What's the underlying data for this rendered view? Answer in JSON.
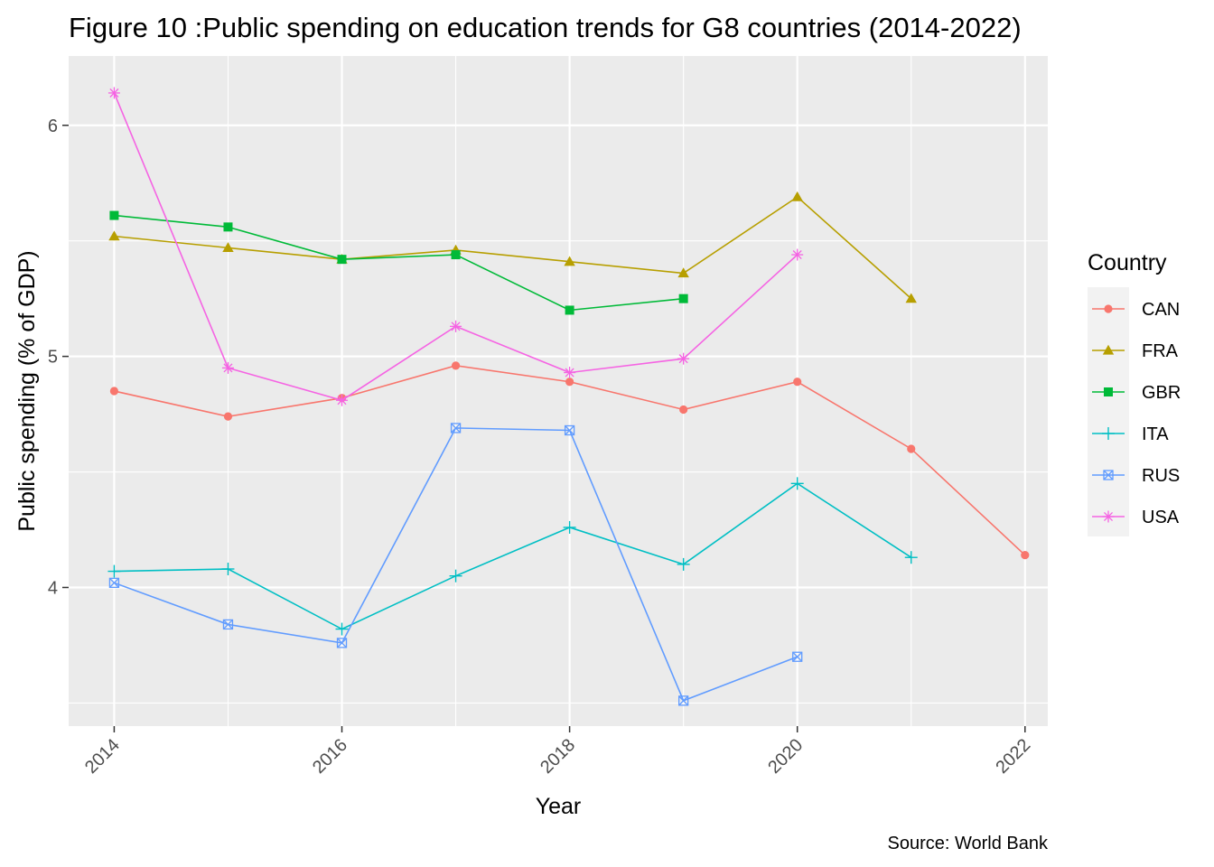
{
  "chart_data": {
    "type": "line",
    "title": "Figure 10 :Public spending on education trends for G8 countries (2014-2022)",
    "xlabel": "Year",
    "ylabel": "Public spending (% of GDP)",
    "caption": "Source: World Bank",
    "xlim": [
      2013.6,
      2022.2
    ],
    "ylim": [
      3.4,
      6.3
    ],
    "x_ticks": [
      2014,
      2016,
      2018,
      2020,
      2022
    ],
    "y_ticks": [
      4,
      5,
      6
    ],
    "grid": true,
    "legend": {
      "title": "Country",
      "position": "right"
    },
    "series": [
      {
        "name": "CAN",
        "color": "#F8766D",
        "marker": "circle",
        "points": [
          [
            2014,
            4.85
          ],
          [
            2015,
            4.74
          ],
          [
            2016,
            4.82
          ],
          [
            2017,
            4.96
          ],
          [
            2018,
            4.89
          ],
          [
            2019,
            4.77
          ],
          [
            2020,
            4.89
          ],
          [
            2021,
            4.6
          ],
          [
            2022,
            4.14
          ]
        ]
      },
      {
        "name": "FRA",
        "color": "#B79F00",
        "marker": "triangle",
        "points": [
          [
            2014,
            5.52
          ],
          [
            2015,
            5.47
          ],
          [
            2016,
            5.42
          ],
          [
            2017,
            5.46
          ],
          [
            2018,
            5.41
          ],
          [
            2019,
            5.36
          ],
          [
            2020,
            5.69
          ],
          [
            2021,
            5.25
          ]
        ]
      },
      {
        "name": "GBR",
        "color": "#00BA38",
        "marker": "square",
        "points": [
          [
            2014,
            5.61
          ],
          [
            2015,
            5.56
          ],
          [
            2016,
            5.42
          ],
          [
            2017,
            5.44
          ],
          [
            2018,
            5.2
          ],
          [
            2019,
            5.25
          ]
        ]
      },
      {
        "name": "ITA",
        "color": "#00BFC4",
        "marker": "plus",
        "points": [
          [
            2014,
            4.07
          ],
          [
            2015,
            4.08
          ],
          [
            2016,
            3.82
          ],
          [
            2017,
            4.05
          ],
          [
            2018,
            4.26
          ],
          [
            2019,
            4.1
          ],
          [
            2020,
            4.45
          ],
          [
            2021,
            4.13
          ]
        ]
      },
      {
        "name": "RUS",
        "color": "#619CFF",
        "marker": "boxcross",
        "points": [
          [
            2014,
            4.02
          ],
          [
            2015,
            3.84
          ],
          [
            2016,
            3.76
          ],
          [
            2017,
            4.69
          ],
          [
            2018,
            4.68
          ],
          [
            2019,
            3.51
          ],
          [
            2020,
            3.7
          ]
        ]
      },
      {
        "name": "USA",
        "color": "#F564E3",
        "marker": "asterisk",
        "points": [
          [
            2014,
            6.14
          ],
          [
            2015,
            4.95
          ],
          [
            2016,
            4.81
          ],
          [
            2017,
            5.13
          ],
          [
            2018,
            4.93
          ],
          [
            2019,
            4.99
          ],
          [
            2020,
            5.44
          ]
        ]
      }
    ]
  }
}
